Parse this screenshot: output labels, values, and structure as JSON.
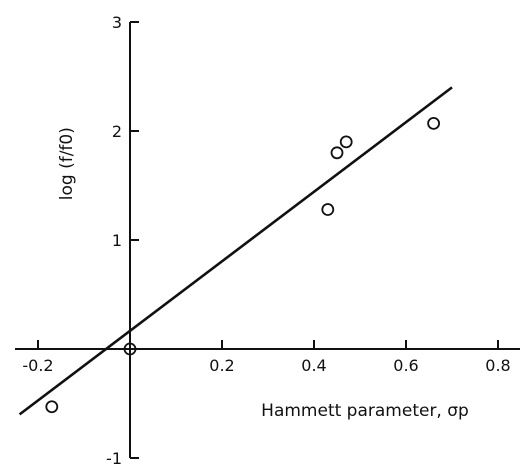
{
  "chart_data": {
    "type": "scatter",
    "xlabel": "Hammett parameter, σp",
    "ylabel": "log (f/f0)",
    "xlim": [
      -0.25,
      0.85
    ],
    "ylim": [
      -1.0,
      3.0
    ],
    "x_ticks": [
      -0.2,
      0.2,
      0.4,
      0.6,
      0.8
    ],
    "x_tick_labels": [
      "-0.2",
      "0.2",
      "0.4",
      "0.6",
      "0.8"
    ],
    "y_ticks": [
      -1,
      1,
      2,
      3
    ],
    "y_tick_labels": [
      "-1",
      "1",
      "2",
      "3"
    ],
    "grid": false,
    "series": [
      {
        "marker": "open-circle",
        "x": [
          -0.17,
          0.0,
          0.43,
          0.45,
          0.47,
          0.66
        ],
        "y": [
          -0.53,
          0.0,
          1.28,
          1.8,
          1.9,
          2.07
        ]
      }
    ],
    "fit_line": {
      "x": [
        -0.24,
        0.7
      ],
      "y": [
        -0.6,
        2.4
      ]
    }
  }
}
